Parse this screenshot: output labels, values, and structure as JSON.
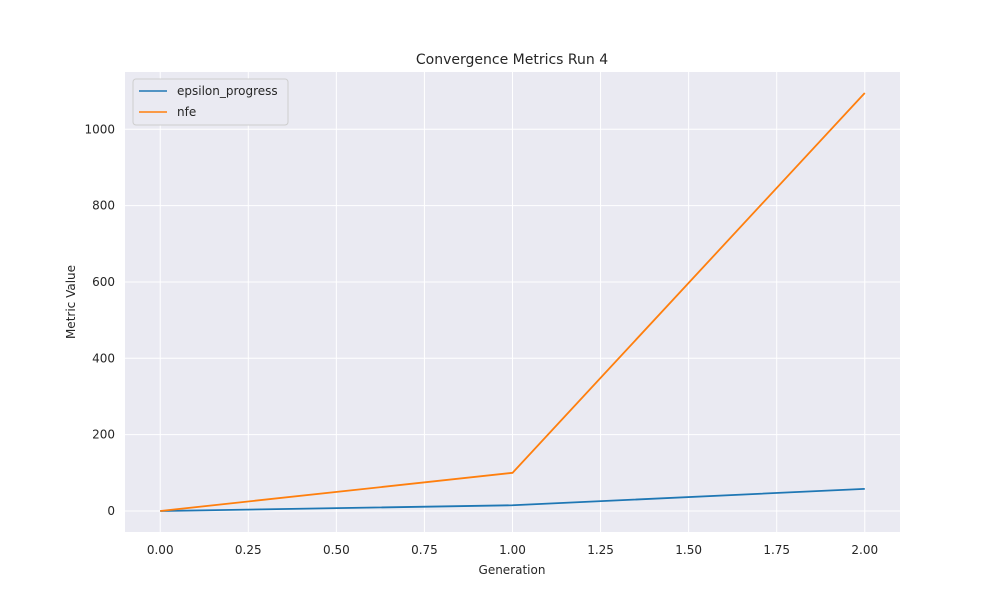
{
  "chart_data": {
    "type": "line",
    "title": "Convergence Metrics Run 4",
    "xlabel": "Generation",
    "ylabel": "Metric Value",
    "x": [
      0,
      1,
      2
    ],
    "xlim": [
      -0.1,
      2.1
    ],
    "ylim": [
      -55,
      1150
    ],
    "xticks": [
      0,
      0.25,
      0.5,
      0.75,
      1.0,
      1.25,
      1.5,
      1.75,
      2.0
    ],
    "xtick_labels": [
      "0.00",
      "0.25",
      "0.50",
      "0.75",
      "1.00",
      "1.25",
      "1.50",
      "1.75",
      "2.00"
    ],
    "yticks": [
      0,
      200,
      400,
      600,
      800,
      1000
    ],
    "ytick_labels": [
      "0",
      "200",
      "400",
      "600",
      "800",
      "1000"
    ],
    "grid": true,
    "legend_position": "top-left",
    "series": [
      {
        "name": "epsilon_progress",
        "color": "#1f77b4",
        "values": [
          0,
          15,
          58
        ]
      },
      {
        "name": "nfe",
        "color": "#ff7f0e",
        "values": [
          0,
          100,
          1095
        ]
      }
    ],
    "colors": {
      "background": "#eaeaf2",
      "grid": "#ffffff"
    }
  }
}
